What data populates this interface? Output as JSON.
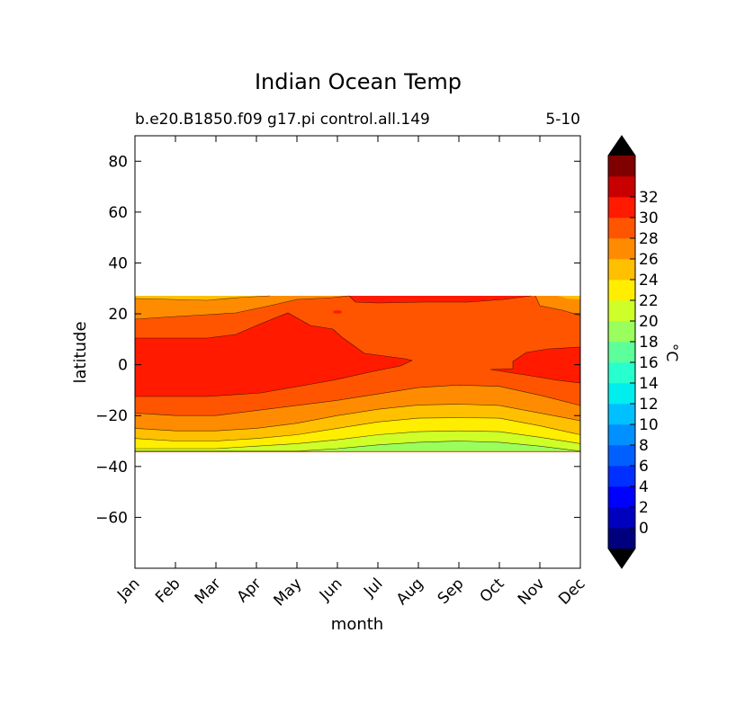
{
  "chart_data": {
    "type": "heatmap",
    "title": "Indian Ocean Temp",
    "subtitle_left": "b.e20.B1850.f09 g17.pi control.all.149",
    "subtitle_right": "5-10",
    "xlabel": "month",
    "ylabel": "latitude",
    "x_tick_labels": [
      "Jan",
      "Feb",
      "Mar",
      "Apr",
      "May",
      "Jun",
      "Jul",
      "Aug",
      "Sep",
      "Oct",
      "Nov",
      "Dec"
    ],
    "y_ticks": [
      80,
      60,
      40,
      20,
      0,
      -20,
      -40,
      -60
    ],
    "y_tick_labels": [
      "80",
      "60",
      "40",
      "20",
      "0",
      "−20",
      "−40",
      "−60"
    ],
    "ylim": [
      -80,
      90
    ],
    "data_lat_range": [
      -34,
      27
    ],
    "colorbar": {
      "label": "°C",
      "ticks": [
        "0",
        "2",
        "4",
        "6",
        "8",
        "10",
        "12",
        "14",
        "16",
        "18",
        "20",
        "22",
        "24",
        "26",
        "28",
        "30",
        "32"
      ],
      "levels": [
        -2,
        0,
        2,
        4,
        6,
        8,
        10,
        12,
        14,
        16,
        18,
        20,
        22,
        24,
        26,
        28,
        30,
        32,
        34
      ],
      "colors": [
        "#00007f",
        "#0000bf",
        "#0000ff",
        "#0030ff",
        "#0060ff",
        "#0090ff",
        "#00c0ff",
        "#00eeee",
        "#28ffce",
        "#5cff9a",
        "#9aff5c",
        "#ceff28",
        "#ffee00",
        "#ffc000",
        "#ff8c00",
        "#ff5500",
        "#ff1a00",
        "#c80000",
        "#800000"
      ],
      "under_color": "#000000",
      "over_color": "#000000"
    },
    "contour_lines_latitude": {
      "months": [
        "Jan",
        "Feb",
        "Mar",
        "Apr",
        "May",
        "Jun",
        "Jul",
        "Aug",
        "Sep",
        "Oct",
        "Nov",
        "Dec"
      ],
      "t18_north_edge": [
        -34,
        -34,
        -34,
        -34,
        -34,
        -34,
        -34,
        -34,
        -34,
        -34,
        -34,
        -34
      ],
      "t20_18_boundary": [
        -34,
        -34,
        -34,
        -34,
        -34,
        -33,
        -31.5,
        -30.5,
        -30,
        -30.5,
        -32,
        -34
      ],
      "t22_20_boundary": [
        -33,
        -33,
        -33,
        -32,
        -31,
        -29.5,
        -27.5,
        -26.3,
        -26,
        -26.3,
        -28.5,
        -31
      ],
      "t24_22_boundary": [
        -29,
        -30,
        -30,
        -29,
        -27.5,
        -25,
        -22.5,
        -21,
        -20.8,
        -21,
        -24,
        -27.5
      ],
      "t26_24_boundary": [
        -25,
        -26,
        -26,
        -25,
        -23,
        -20,
        -17.5,
        -15.8,
        -15.5,
        -16,
        -19,
        -22
      ],
      "t28_26_boundary": [
        -19,
        -20,
        -20,
        -18,
        -16,
        -14,
        -11.5,
        -9,
        -8,
        -8.5,
        -12,
        -16
      ],
      "t28_26_south_branch": [
        -12,
        -12,
        -11,
        -9,
        -6,
        -3,
        -1,
        1,
        -1,
        -1,
        0,
        -7
      ],
      "t26_28_north_branch": [
        10,
        10,
        10,
        12,
        14,
        15,
        22,
        25,
        26,
        22,
        19,
        10
      ],
      "t24_26_north": [
        20,
        19.5,
        18,
        17,
        18,
        22,
        26,
        27,
        27,
        25,
        23,
        20
      ]
    }
  }
}
